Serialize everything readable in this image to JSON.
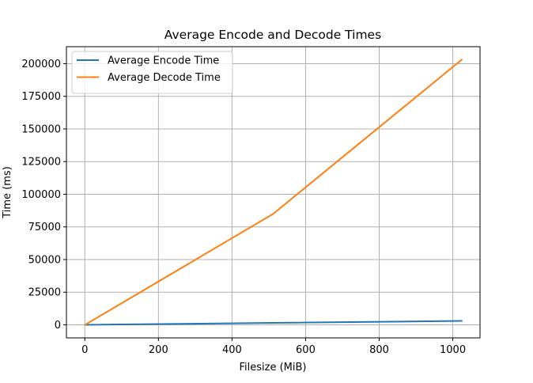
{
  "chart_data": {
    "type": "line",
    "title": "Average Encode and Decode Times",
    "xlabel": "Filesize (MiB)",
    "ylabel": "Time (ms)",
    "xlim": [
      -50,
      1074
    ],
    "ylim": [
      -10000,
      213000
    ],
    "xticks": [
      0,
      200,
      400,
      600,
      800,
      1000
    ],
    "yticks": [
      0,
      25000,
      50000,
      75000,
      100000,
      125000,
      150000,
      175000,
      200000
    ],
    "grid": true,
    "legend_position": "upper-left",
    "series": [
      {
        "name": "Average Encode Time",
        "color": "#1f77b4",
        "x": [
          1,
          512,
          1024
        ],
        "y": [
          0,
          1500,
          3000
        ]
      },
      {
        "name": "Average Decode Time",
        "color": "#ff7f0e",
        "x": [
          1,
          512,
          1024
        ],
        "y": [
          100,
          85000,
          203000
        ]
      }
    ]
  }
}
